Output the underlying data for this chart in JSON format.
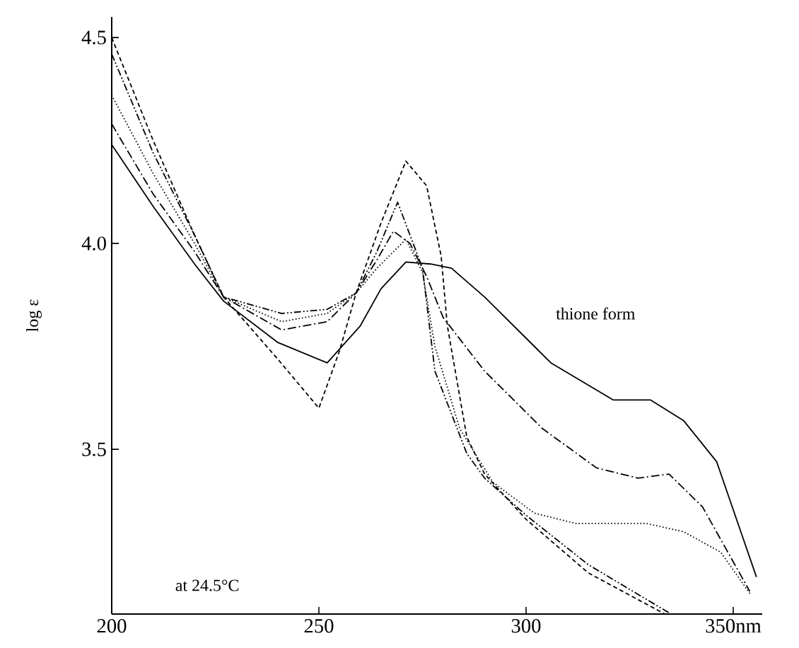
{
  "chart_data": {
    "type": "line",
    "ylabel": "log ε",
    "xlim": [
      200,
      357
    ],
    "ylim": [
      3.1,
      4.55
    ],
    "xticks": [
      200,
      250,
      300,
      {
        "value": 350,
        "label": "350nm"
      }
    ],
    "yticks": [
      {
        "value": 3.5,
        "label": "3.5"
      },
      {
        "value": 4.0,
        "label": "4.0"
      },
      {
        "value": 4.5,
        "label": "4.5"
      }
    ],
    "grid": false,
    "legend": false,
    "marker": "none",
    "annotations": [
      "at 24.5°C"
    ],
    "series": [
      {
        "name": "thione form",
        "color": "#000000",
        "line_style": "solid",
        "x": [
          200,
          210,
          220,
          227,
          240,
          252,
          260,
          265,
          271,
          277,
          282,
          290,
          306,
          321,
          330,
          338,
          346,
          355.6
        ],
        "values": [
          4.24,
          4.09,
          3.95,
          3.86,
          3.76,
          3.71,
          3.8,
          3.89,
          3.955,
          3.95,
          3.94,
          3.87,
          3.71,
          3.62,
          3.62,
          3.57,
          3.47,
          3.19
        ]
      },
      {
        "color": "#000000",
        "line_style": "dashdot",
        "x": [
          200,
          210,
          220,
          227,
          241,
          252,
          259,
          264,
          268,
          272,
          276,
          280,
          290,
          304,
          317,
          327,
          334.5,
          342.6,
          354
        ],
        "values": [
          4.29,
          4.12,
          3.98,
          3.87,
          3.79,
          3.81,
          3.88,
          3.96,
          4.03,
          4.0,
          3.92,
          3.82,
          3.69,
          3.55,
          3.455,
          3.43,
          3.44,
          3.36,
          3.155
        ]
      },
      {
        "color": "#000000",
        "line_style": "dotted",
        "x": [
          200,
          210,
          220,
          227,
          241,
          252,
          259,
          264,
          271,
          275,
          278,
          284,
          292,
          302,
          312,
          329,
          338,
          347,
          354
        ],
        "values": [
          4.36,
          4.17,
          4.0,
          3.87,
          3.81,
          3.83,
          3.88,
          3.94,
          4.01,
          3.93,
          3.75,
          3.55,
          3.42,
          3.345,
          3.32,
          3.32,
          3.3,
          3.25,
          3.15
        ]
      },
      {
        "color": "#000000",
        "line_style": "dashed",
        "x": [
          200,
          210,
          220,
          227,
          240,
          250,
          255,
          259,
          265,
          271,
          276,
          279.5,
          281,
          285.7,
          290,
          300,
          315,
          333.5
        ],
        "values": [
          4.5,
          4.25,
          4.02,
          3.87,
          3.72,
          3.6,
          3.74,
          3.88,
          4.05,
          4.2,
          4.14,
          3.97,
          3.8,
          3.53,
          3.44,
          3.33,
          3.2,
          3.1
        ]
      },
      {
        "color": "#000000",
        "line_style": "dashdotdot",
        "x": [
          200,
          210,
          220,
          227,
          241,
          252,
          259,
          264,
          269,
          275,
          278,
          285.7,
          290,
          300,
          315,
          335
        ],
        "values": [
          4.46,
          4.22,
          4.02,
          3.87,
          3.83,
          3.84,
          3.88,
          3.98,
          4.1,
          3.94,
          3.69,
          3.49,
          3.43,
          3.34,
          3.22,
          3.1
        ]
      }
    ]
  }
}
